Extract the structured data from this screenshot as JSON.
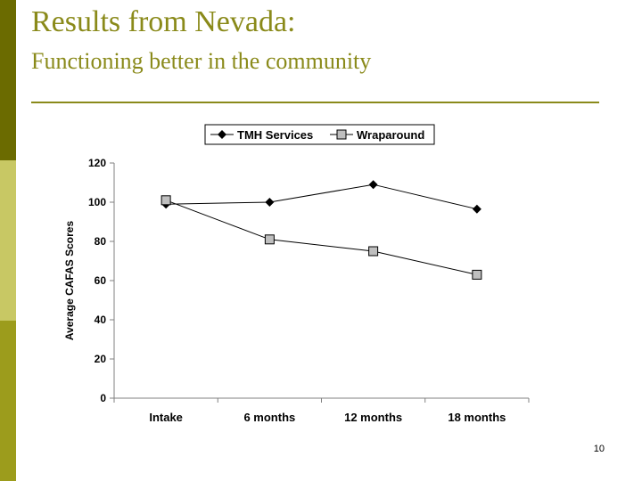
{
  "slide": {
    "title": "Results from Nevada:",
    "subtitle": "Functioning better in the community",
    "page_number": "10"
  },
  "colors": {
    "accent": "#8a8a1a",
    "bar_dark": "#6b6b00",
    "bar_light": "#c8c864",
    "bar_mid": "#9c9c1c"
  },
  "chart_data": {
    "type": "line",
    "categories": [
      "Intake",
      "6 months",
      "12 months",
      "18 months"
    ],
    "series": [
      {
        "name": "TMH Services",
        "values": [
          99,
          100,
          109,
          96.5
        ],
        "marker": "diamond",
        "color": "#000000"
      },
      {
        "name": "Wraparound",
        "values": [
          101,
          81,
          75,
          63
        ],
        "marker": "square",
        "color": "#000000",
        "marker_fill": "#bfbfbf"
      }
    ],
    "xlabel": "",
    "ylabel": "Average CAFAS Scores",
    "ylim": [
      0,
      120
    ],
    "yticks": [
      0,
      20,
      40,
      60,
      80,
      100,
      120
    ],
    "grid": false,
    "legend": "top"
  }
}
